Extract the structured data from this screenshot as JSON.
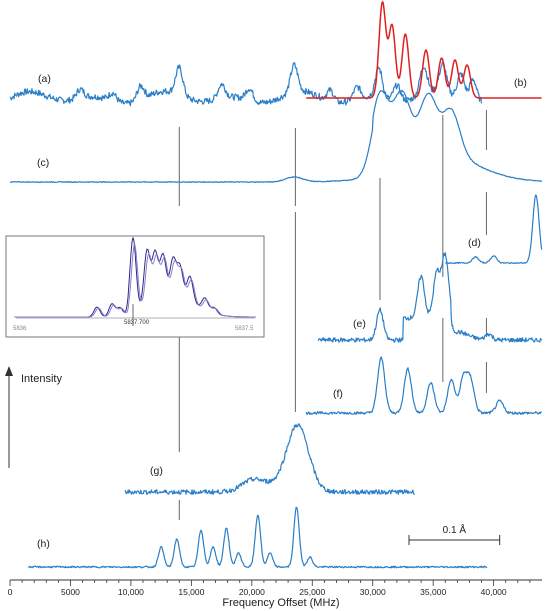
{
  "chart_data": {
    "type": "line",
    "xlabel": "Frequency Offset (MHz)",
    "ylabel": "Intensity",
    "xlim": [
      0,
      44000
    ],
    "x_ticks": [
      "0",
      "5000",
      "10,000",
      "15,000",
      "20,000",
      "25,000",
      "30,000",
      "35,000",
      "40,000"
    ],
    "x_tick_values": [
      0,
      5000,
      10000,
      15000,
      20000,
      25000,
      30000,
      35000,
      40000
    ],
    "grid": false,
    "colors": {
      "trace": "#2a7fc8",
      "simulation": "#e02020",
      "axis": "#333333",
      "marker": "#555555"
    },
    "traces": [
      {
        "label": "(a)",
        "x_range": [
          0,
          39000
        ],
        "peaks": [
          5800,
          8500,
          10800,
          14000,
          17500,
          19800,
          23500,
          26500,
          28700,
          30500,
          32000,
          34200,
          35800,
          37300,
          38300
        ]
      },
      {
        "label": "(b)",
        "x_range": [
          24500,
          44000
        ],
        "peaks": [
          30800,
          31600,
          32700,
          34400,
          35700,
          36800,
          37800
        ]
      },
      {
        "label": "(c)",
        "x_range": [
          0,
          44000
        ],
        "peaks": [
          23500,
          30600,
          32400,
          34600,
          36500
        ]
      },
      {
        "label": "(d)",
        "x_range": [
          36000,
          44000
        ],
        "peaks": [
          38500,
          40000,
          43500
        ]
      },
      {
        "label": "(e)",
        "x_range": [
          25500,
          44000
        ],
        "peaks": [
          30600,
          34000,
          35300,
          36000,
          39600
        ]
      },
      {
        "label": "(f)",
        "x_range": [
          24500,
          44000
        ],
        "peaks": [
          30700,
          32900,
          34800,
          36500,
          37500,
          38100,
          40500
        ]
      },
      {
        "label": "(g)",
        "x_range": [
          9500,
          33500
        ],
        "peaks": [
          20000,
          23800
        ]
      },
      {
        "label": "(h)",
        "x_range": [
          1500,
          39500
        ],
        "peaks": [
          12500,
          13800,
          15800,
          16800,
          17900,
          18900,
          20500,
          21500,
          23700,
          24800
        ]
      }
    ],
    "marker_lines_x": [
      14000,
      23600,
      30600,
      35800,
      39400
    ],
    "scale_bar": {
      "label": "0.1  Å",
      "x_range": [
        33000,
        40500
      ]
    },
    "inset": {
      "x_ticks": [
        "5836",
        "5837.5"
      ],
      "marker_label": "5837.700"
    }
  }
}
